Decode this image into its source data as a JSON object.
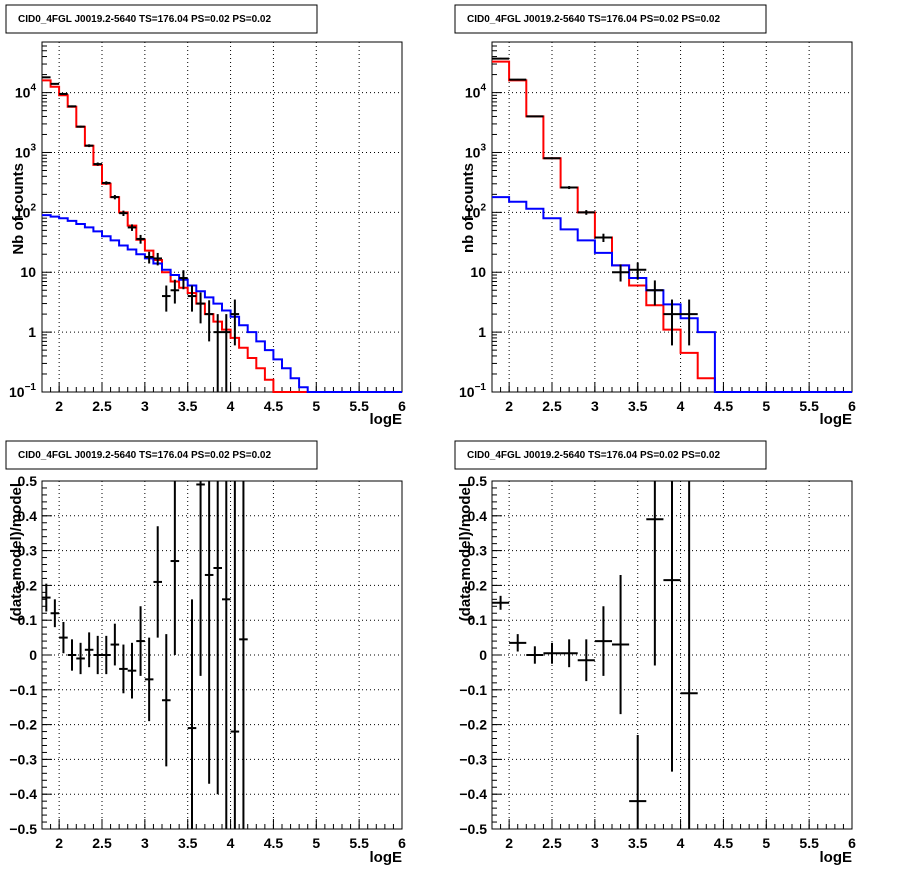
{
  "chart_data": [
    {
      "type": "line",
      "title": "CID0_4FGL J0019.2-5640 TS=176.04 PS=0.02 PS=0.02",
      "xlabel": "logE",
      "ylabel": "Nb of counts",
      "xlim": [
        1.8,
        6.0
      ],
      "ylim": [
        0.1,
        70000
      ],
      "yscale": "log",
      "grid": true,
      "x_ticks": [
        "2",
        "2.5",
        "3",
        "3.5",
        "4",
        "4.5",
        "5",
        "5.5",
        "6"
      ],
      "y_ticks": [
        {
          "v": 0.1,
          "base": "10",
          "exp": "−1"
        },
        {
          "v": 1,
          "label": "1"
        },
        {
          "v": 10,
          "label": "10"
        },
        {
          "v": 100,
          "base": "10",
          "exp": "2"
        },
        {
          "v": 1000,
          "base": "10",
          "exp": "3"
        },
        {
          "v": 10000,
          "base": "10",
          "exp": "4"
        }
      ],
      "bin_width": 0.1,
      "bin_start": 1.8,
      "series": [
        {
          "color": "#ff0000",
          "values": [
            16000,
            12500,
            9000,
            5800,
            2700,
            1300,
            620,
            300,
            180,
            100,
            60,
            35,
            23,
            16,
            10,
            7,
            5.5,
            4.5,
            3.0,
            2.0,
            1.5,
            1.1,
            0.8,
            0.55,
            0.37,
            0.25,
            0.16,
            0.1,
            0.1,
            0.1,
            0.1,
            0.1,
            0.1,
            0.1,
            0.1,
            0.1,
            0.1,
            0.1,
            0.1,
            0.1,
            0.1,
            0.1
          ]
        },
        {
          "color": "#0000ff",
          "values": [
            90,
            85,
            80,
            72,
            64,
            56,
            48,
            40,
            34,
            28,
            24,
            20,
            17,
            14,
            11,
            9,
            7.5,
            6,
            4.8,
            3.8,
            3,
            2.3,
            1.8,
            1.3,
            1.0,
            0.7,
            0.5,
            0.35,
            0.25,
            0.17,
            0.12,
            0.1,
            0.1,
            0.1,
            0.1,
            0.1,
            0.1,
            0.1,
            0.1,
            0.1,
            0.1,
            0.1
          ]
        }
      ],
      "points": [
        {
          "x": 1.85,
          "y": 18000,
          "lo": 17500,
          "hi": 18500
        },
        {
          "x": 1.95,
          "y": 14000,
          "lo": 13600,
          "hi": 14400
        },
        {
          "x": 2.05,
          "y": 9500,
          "lo": 9200,
          "hi": 9800
        },
        {
          "x": 2.15,
          "y": 5900,
          "lo": 5700,
          "hi": 6100
        },
        {
          "x": 2.25,
          "y": 2700,
          "lo": 2600,
          "hi": 2800
        },
        {
          "x": 2.35,
          "y": 1300,
          "lo": 1230,
          "hi": 1370
        },
        {
          "x": 2.45,
          "y": 640,
          "lo": 600,
          "hi": 680
        },
        {
          "x": 2.55,
          "y": 310,
          "lo": 290,
          "hi": 330
        },
        {
          "x": 2.65,
          "y": 180,
          "lo": 165,
          "hi": 195
        },
        {
          "x": 2.75,
          "y": 97,
          "lo": 87,
          "hi": 107
        },
        {
          "x": 2.85,
          "y": 56,
          "lo": 49,
          "hi": 63
        },
        {
          "x": 2.95,
          "y": 36,
          "lo": 30,
          "hi": 42
        },
        {
          "x": 3.05,
          "y": 18,
          "lo": 14,
          "hi": 22
        },
        {
          "x": 3.15,
          "y": 17,
          "lo": 13,
          "hi": 21
        },
        {
          "x": 3.25,
          "y": 4,
          "lo": 2.2,
          "hi": 6
        },
        {
          "x": 3.35,
          "y": 5,
          "lo": 3,
          "hi": 7.5
        },
        {
          "x": 3.45,
          "y": 8,
          "lo": 5.2,
          "hi": 10.8
        },
        {
          "x": 3.55,
          "y": 4,
          "lo": 2.2,
          "hi": 6
        },
        {
          "x": 3.65,
          "y": 3,
          "lo": 1.4,
          "hi": 4.6
        },
        {
          "x": 3.75,
          "y": 2,
          "lo": 0.7,
          "hi": 3.4
        },
        {
          "x": 3.85,
          "y": 1,
          "lo": 0.1,
          "hi": 2
        },
        {
          "x": 3.95,
          "y": 1,
          "lo": 0.1,
          "hi": 2
        },
        {
          "x": 4.05,
          "y": 2,
          "lo": 0.6,
          "hi": 3.5
        }
      ]
    },
    {
      "type": "line",
      "title": "CID0_4FGL J0019.2-5640 TS=176.04 PS=0.02 PS=0.02",
      "xlabel": "logE",
      "ylabel": "nb of counts",
      "xlim": [
        1.8,
        6.0
      ],
      "ylim": [
        0.1,
        70000
      ],
      "yscale": "log",
      "grid": true,
      "x_ticks": [
        "2",
        "2.5",
        "3",
        "3.5",
        "4",
        "4.5",
        "5",
        "5.5",
        "6"
      ],
      "y_ticks": [
        {
          "v": 0.1,
          "base": "10",
          "exp": "−1"
        },
        {
          "v": 1,
          "label": "1"
        },
        {
          "v": 10,
          "label": "10"
        },
        {
          "v": 100,
          "base": "10",
          "exp": "2"
        },
        {
          "v": 1000,
          "base": "10",
          "exp": "3"
        },
        {
          "v": 10000,
          "base": "10",
          "exp": "4"
        }
      ],
      "bin_width": 0.2,
      "bin_start": 1.8,
      "series": [
        {
          "color": "#ff0000",
          "values": [
            33000,
            16000,
            4000,
            800,
            260,
            100,
            38,
            13,
            6,
            2.8,
            1.1,
            0.45,
            0.17,
            0.1,
            0.1,
            0.1,
            0.1,
            0.1,
            0.1,
            0.1,
            0.1
          ]
        },
        {
          "color": "#0000ff",
          "values": [
            180,
            150,
            115,
            80,
            52,
            34,
            21,
            13,
            8,
            5,
            2.9,
            1.7,
            1.0,
            0.1,
            0.1,
            0.1,
            0.1,
            0.1,
            0.1,
            0.1,
            0.1
          ]
        }
      ],
      "points": [
        {
          "x": 1.9,
          "y": 37000,
          "lo": 36000,
          "hi": 38000
        },
        {
          "x": 2.1,
          "y": 16500,
          "lo": 16100,
          "hi": 16900
        },
        {
          "x": 2.3,
          "y": 4000,
          "lo": 3900,
          "hi": 4100
        },
        {
          "x": 2.5,
          "y": 800,
          "lo": 770,
          "hi": 830
        },
        {
          "x": 2.7,
          "y": 260,
          "lo": 245,
          "hi": 275
        },
        {
          "x": 2.9,
          "y": 100,
          "lo": 91,
          "hi": 109
        },
        {
          "x": 3.1,
          "y": 38,
          "lo": 32,
          "hi": 44
        },
        {
          "x": 3.3,
          "y": 10,
          "lo": 7,
          "hi": 13.5
        },
        {
          "x": 3.5,
          "y": 11,
          "lo": 7.5,
          "hi": 14.5
        },
        {
          "x": 3.7,
          "y": 5,
          "lo": 2.8,
          "hi": 7.3
        },
        {
          "x": 3.9,
          "y": 2,
          "lo": 0.6,
          "hi": 3.5
        },
        {
          "x": 4.1,
          "y": 2,
          "lo": 0.6,
          "hi": 3.5
        }
      ]
    },
    {
      "type": "scatter",
      "title": "CID0_4FGL J0019.2-5640 TS=176.04 PS=0.02 PS=0.02",
      "xlabel": "logE",
      "ylabel": "(data-model)/model",
      "xlim": [
        1.8,
        6.0
      ],
      "ylim": [
        -0.5,
        0.5
      ],
      "grid": true,
      "x_ticks": [
        "2",
        "2.5",
        "3",
        "3.5",
        "4",
        "4.5",
        "5",
        "5.5",
        "6"
      ],
      "y_ticks": [
        "−0.5",
        "−0.4",
        "−0.3",
        "−0.2",
        "−0.1",
        "0",
        "0.1",
        "0.2",
        "0.3",
        "0.4",
        "0.5"
      ],
      "bin_width": 0.1,
      "points": [
        {
          "x": 1.85,
          "y": 0.165,
          "err": 0.04
        },
        {
          "x": 1.95,
          "y": 0.12,
          "err": 0.04
        },
        {
          "x": 2.05,
          "y": 0.05,
          "err": 0.045
        },
        {
          "x": 2.15,
          "y": 0.0,
          "err": 0.045
        },
        {
          "x": 2.25,
          "y": -0.01,
          "err": 0.045
        },
        {
          "x": 2.35,
          "y": 0.015,
          "err": 0.05
        },
        {
          "x": 2.45,
          "y": 0.0,
          "err": 0.055
        },
        {
          "x": 2.55,
          "y": 0.0,
          "err": 0.055
        },
        {
          "x": 2.65,
          "y": 0.03,
          "err": 0.06
        },
        {
          "x": 2.75,
          "y": -0.04,
          "err": 0.07
        },
        {
          "x": 2.85,
          "y": -0.045,
          "err": 0.08
        },
        {
          "x": 2.95,
          "y": 0.04,
          "err": 0.1
        },
        {
          "x": 3.05,
          "y": -0.07,
          "err": 0.12
        },
        {
          "x": 3.15,
          "y": 0.21,
          "err": 0.16
        },
        {
          "x": 3.25,
          "y": -0.13,
          "err": 0.19
        },
        {
          "x": 3.35,
          "y": 0.27,
          "err": 0.27
        },
        {
          "x": 3.55,
          "y": -0.21,
          "err": 0.37
        },
        {
          "x": 3.65,
          "y": 0.49,
          "err": 0.55
        },
        {
          "x": 3.75,
          "y": 0.23,
          "err": 0.6
        },
        {
          "x": 3.85,
          "y": 0.25,
          "err": 0.65
        },
        {
          "x": 3.95,
          "y": 0.16,
          "err": 0.7
        },
        {
          "x": 4.05,
          "y": -0.22,
          "err": 0.8
        },
        {
          "x": 4.15,
          "y": 0.045,
          "err": 0.9
        }
      ]
    },
    {
      "type": "scatter",
      "title": "CID0_4FGL J0019.2-5640 TS=176.04 PS=0.02 PS=0.02",
      "xlabel": "logE",
      "ylabel": "(data-model)/model",
      "xlim": [
        1.8,
        6.0
      ],
      "ylim": [
        -0.5,
        0.5
      ],
      "grid": true,
      "x_ticks": [
        "2",
        "2.5",
        "3",
        "3.5",
        "4",
        "4.5",
        "5",
        "5.5",
        "6"
      ],
      "y_ticks": [
        "−0.5",
        "−0.4",
        "−0.3",
        "−0.2",
        "−0.1",
        "0",
        "0.1",
        "0.2",
        "0.3",
        "0.4",
        "0.5"
      ],
      "bin_width": 0.2,
      "points": [
        {
          "x": 1.9,
          "y": 0.15,
          "err": 0.02
        },
        {
          "x": 2.1,
          "y": 0.035,
          "err": 0.025
        },
        {
          "x": 2.3,
          "y": 0.0,
          "err": 0.025
        },
        {
          "x": 2.5,
          "y": 0.005,
          "err": 0.03
        },
        {
          "x": 2.7,
          "y": 0.005,
          "err": 0.04
        },
        {
          "x": 2.9,
          "y": -0.015,
          "err": 0.06
        },
        {
          "x": 3.1,
          "y": 0.04,
          "err": 0.1
        },
        {
          "x": 3.3,
          "y": 0.03,
          "err": 0.2
        },
        {
          "x": 3.5,
          "y": -0.42,
          "err": 0.19
        },
        {
          "x": 3.7,
          "y": 0.39,
          "err": 0.42
        },
        {
          "x": 3.9,
          "y": 0.215,
          "err": 0.55
        },
        {
          "x": 4.1,
          "y": -0.11,
          "err": 0.9
        }
      ]
    }
  ]
}
